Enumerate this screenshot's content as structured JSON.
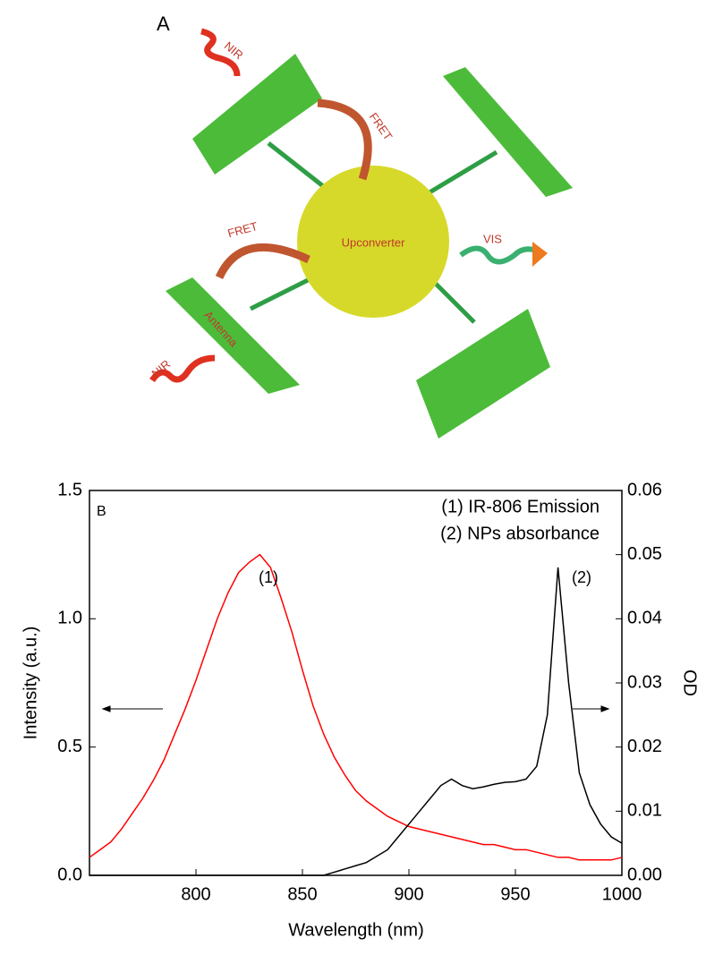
{
  "diagram": {
    "panel_label": "A",
    "labels": [
      "NIR",
      "FRET",
      "Upconverter",
      "FRET",
      "VIS",
      "Antenna",
      "NIR"
    ]
  },
  "chart_data": {
    "type": "line",
    "panel_label": "B",
    "xlabel": "Wavelength (nm)",
    "ylabel": "Intensity (a.u.)",
    "y2label": "OD",
    "annotations": [
      "(1)",
      "(2)"
    ],
    "x": [
      750,
      755,
      760,
      765,
      770,
      775,
      780,
      785,
      790,
      795,
      800,
      805,
      810,
      815,
      820,
      825,
      830,
      835,
      840,
      845,
      850,
      855,
      860,
      865,
      870,
      875,
      880,
      885,
      890,
      895,
      900,
      905,
      910,
      915,
      920,
      925,
      930,
      935,
      940,
      945,
      950,
      955,
      960,
      965,
      970,
      975,
      980,
      985,
      990,
      995,
      1000
    ],
    "series": [
      {
        "name": "(1) IR-806 Emission",
        "color": "#ff0000",
        "values": [
          0.07,
          0.1,
          0.13,
          0.18,
          0.24,
          0.3,
          0.37,
          0.45,
          0.55,
          0.65,
          0.76,
          0.88,
          1.0,
          1.1,
          1.18,
          1.22,
          1.25,
          1.2,
          1.08,
          0.95,
          0.8,
          0.66,
          0.55,
          0.46,
          0.39,
          0.33,
          0.29,
          0.26,
          0.23,
          0.21,
          0.19,
          0.18,
          0.17,
          0.16,
          0.15,
          0.14,
          0.13,
          0.12,
          0.12,
          0.11,
          0.1,
          0.1,
          0.09,
          0.08,
          0.07,
          0.07,
          0.06,
          0.06,
          0.06,
          0.06,
          0.07
        ]
      },
      {
        "name": "(2) NPs absorbance",
        "color": "#000000",
        "axis": "y2",
        "values": [
          0,
          0,
          0,
          0,
          0,
          0,
          0,
          0,
          0,
          0,
          0,
          0,
          0,
          0,
          0,
          0,
          0,
          0,
          0,
          0,
          0,
          0,
          0,
          0.0005,
          0.001,
          0.0015,
          0.002,
          0.003,
          0.004,
          0.006,
          0.008,
          0.01,
          0.012,
          0.014,
          0.015,
          0.014,
          0.0135,
          0.0138,
          0.0142,
          0.0145,
          0.0146,
          0.015,
          0.017,
          0.025,
          0.048,
          0.03,
          0.016,
          0.011,
          0.008,
          0.006,
          0.005
        ]
      }
    ],
    "xlim": [
      750,
      1000
    ],
    "xticks": [
      800,
      850,
      900,
      950,
      1000
    ],
    "ylim": [
      0,
      1.5
    ],
    "yticks": [
      {
        "value": 0,
        "label": "0.0"
      },
      {
        "value": 0.5,
        "label": "0.5"
      },
      {
        "value": 1,
        "label": "1.0"
      },
      {
        "value": 1.5,
        "label": "1.5"
      }
    ],
    "y2lim": [
      0,
      0.06
    ],
    "y2ticks": [
      {
        "value": 0,
        "label": "0.00"
      },
      {
        "value": 0.01,
        "label": "0.01"
      },
      {
        "value": 0.02,
        "label": "0.02"
      },
      {
        "value": 0.03,
        "label": "0.03"
      },
      {
        "value": 0.04,
        "label": "0.04"
      },
      {
        "value": 0.05,
        "label": "0.05"
      },
      {
        "value": 0.06,
        "label": "0.06"
      }
    ]
  }
}
